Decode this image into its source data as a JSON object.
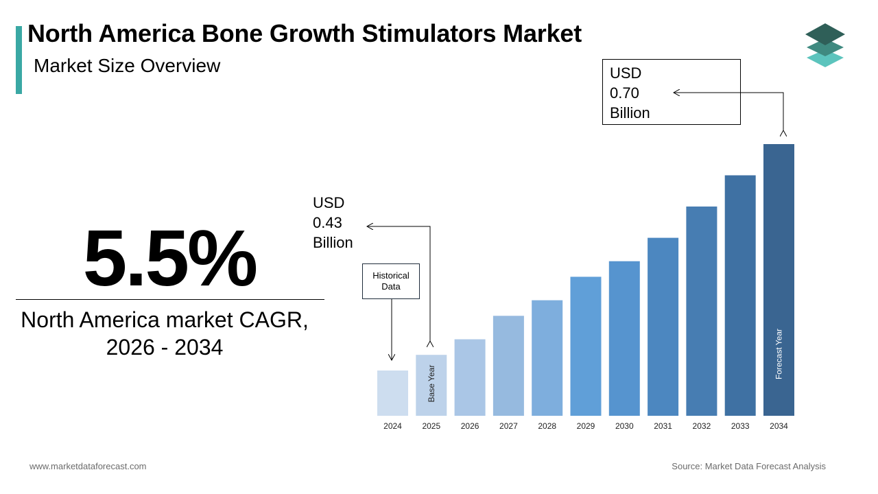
{
  "header": {
    "title": "North America Bone Growth Stimulators Market",
    "subtitle": "Market Size Overview"
  },
  "colors": {
    "accent": "#3aa8a4",
    "logo_top": "#2f5f58",
    "logo_mid": "#3f8a80",
    "logo_bottom": "#5cc4bd"
  },
  "cagr": {
    "value": "5.5%",
    "caption_line1": "North America market CAGR,",
    "caption_line2": "2026 - 2034"
  },
  "callouts": {
    "start": {
      "line1": "USD",
      "line2": "0.43",
      "line3": "Billion"
    },
    "end": {
      "line1": "USD",
      "line2": "0.70",
      "line3": "Billion"
    },
    "historical": {
      "line1": "Historical",
      "line2": "Data"
    }
  },
  "chart_data": {
    "type": "bar",
    "categories": [
      "2024",
      "2025",
      "2026",
      "2027",
      "2028",
      "2029",
      "2030",
      "2031",
      "2032",
      "2033",
      "2034"
    ],
    "values": [
      0.41,
      0.43,
      0.45,
      0.48,
      0.5,
      0.53,
      0.55,
      0.58,
      0.62,
      0.66,
      0.7
    ],
    "bar_labels": {
      "2025": "Base Year",
      "2034": "Forecast Year"
    },
    "colors": [
      "#cdddef",
      "#bdd2ea",
      "#aac6e6",
      "#96badf",
      "#7eaedd",
      "#609fd8",
      "#5694cf",
      "#4c87c0",
      "#477db2",
      "#3f71a3",
      "#3a6591"
    ],
    "title": "",
    "xlabel": "",
    "ylabel": "",
    "grid": false,
    "legend": "none"
  },
  "footer": {
    "left": "www.marketdataforecast.com",
    "right": "Source: Market Data Forecast Analysis"
  }
}
